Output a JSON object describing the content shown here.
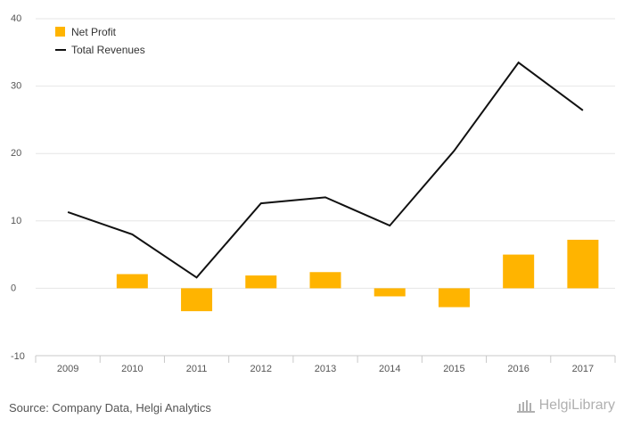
{
  "chart_data": {
    "type": "bar",
    "categories": [
      "2009",
      "2010",
      "2011",
      "2012",
      "2013",
      "2014",
      "2015",
      "2016",
      "2017"
    ],
    "series": [
      {
        "name": "Net Profit",
        "kind": "bar",
        "color": "#FFB400",
        "values": [
          0,
          2.1,
          -3.4,
          1.9,
          2.4,
          -1.2,
          -2.8,
          5.0,
          7.2
        ]
      },
      {
        "name": "Total Revenues",
        "kind": "line",
        "color": "#111111",
        "values": [
          11.3,
          8.0,
          1.6,
          12.6,
          13.5,
          9.3,
          20.4,
          33.5,
          26.4
        ]
      }
    ],
    "y_ticks": [
      -10,
      0,
      10,
      20,
      30,
      40
    ],
    "ylim": [
      -10,
      40
    ],
    "grid": true,
    "legend_position": "top-left"
  },
  "source": "Source: Company Data, Helgi Analytics",
  "logo": {
    "text": "HelgiLibrary",
    "icon": "library-building-icon"
  }
}
